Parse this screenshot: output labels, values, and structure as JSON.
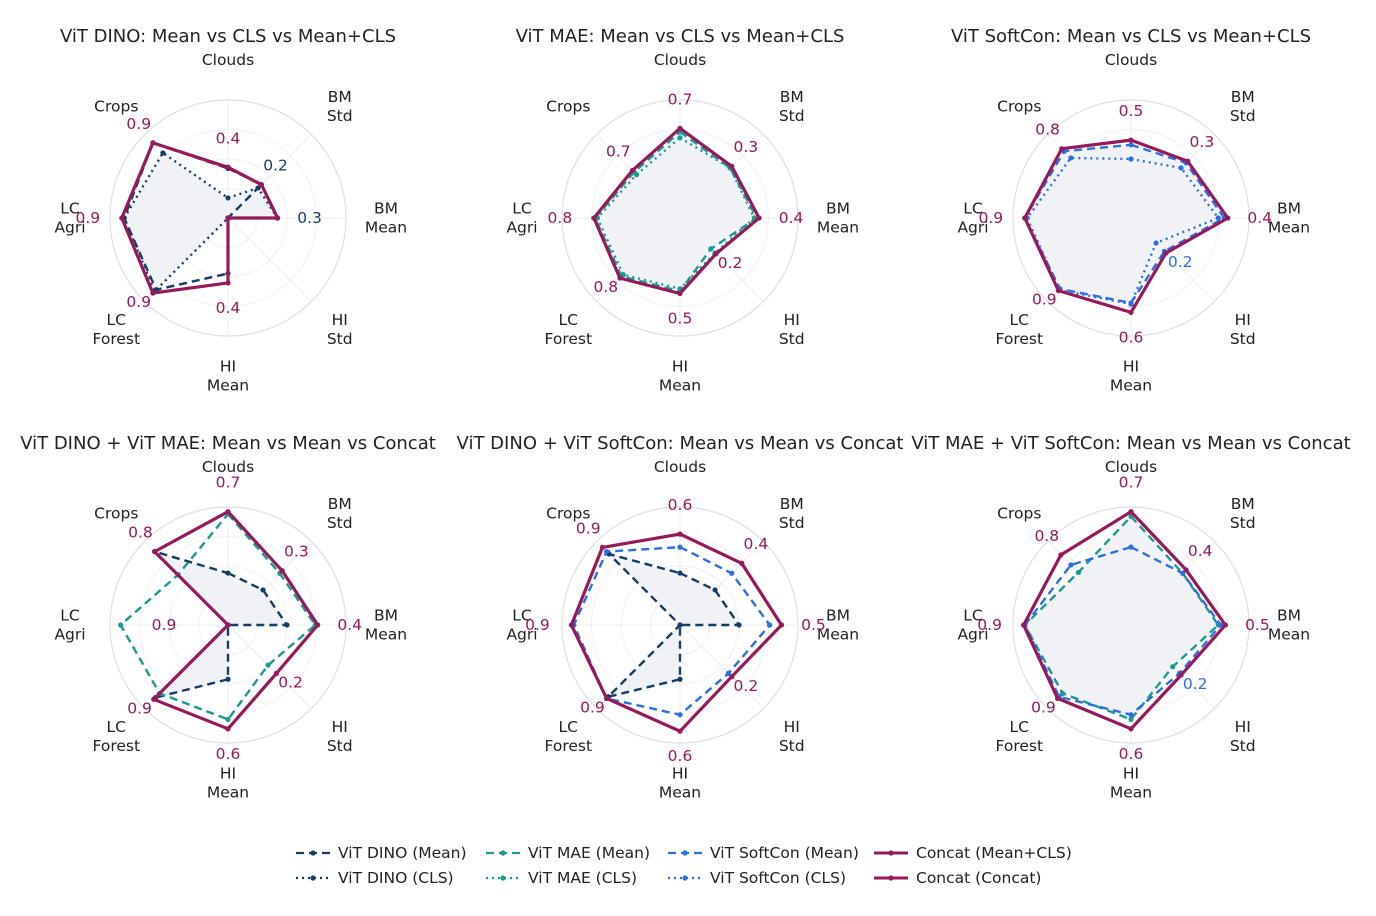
{
  "colors": {
    "dino": "#163d66",
    "mae": "#1a9a91",
    "softcon": "#2d6fe0",
    "concat": "#96195a",
    "grid": "#dedede",
    "fill_primary": "#eef1f5"
  },
  "series_styles": {
    "dino_mean": {
      "label": "ViT DINO (Mean)",
      "color": "#163d66",
      "dash": "dashed"
    },
    "dino_cls": {
      "label": "ViT DINO (CLS)",
      "color": "#163d66",
      "dash": "dotted"
    },
    "mae_mean": {
      "label": "ViT MAE (Mean)",
      "color": "#1a9a91",
      "dash": "dashed"
    },
    "mae_cls": {
      "label": "ViT MAE (CLS)",
      "color": "#1a9a91",
      "dash": "dotted"
    },
    "softcon_mean": {
      "label": "ViT SoftCon (Mean)",
      "color": "#2d6fe0",
      "dash": "dashed"
    },
    "softcon_cls": {
      "label": "ViT SoftCon (CLS)",
      "color": "#2d6fe0",
      "dash": "dotted"
    },
    "concat_meancls": {
      "label": "Concat (Mean+CLS)",
      "color": "#96195a",
      "dash": "solid"
    },
    "concat_concat": {
      "label": "Concat (Concat)",
      "color": "#96195a",
      "dash": "solid"
    }
  },
  "legend": {
    "columns": [
      [
        "dino_mean",
        "dino_cls"
      ],
      [
        "mae_mean",
        "mae_cls"
      ],
      [
        "softcon_mean",
        "softcon_cls"
      ],
      [
        "concat_meancls",
        "concat_concat"
      ]
    ]
  },
  "axes": [
    [
      "Clouds"
    ],
    [
      "BM",
      "Std"
    ],
    [
      "BM",
      "Mean"
    ],
    [
      "HI",
      "Std"
    ],
    [
      "HI",
      "Mean"
    ],
    [
      "LC",
      "Forest"
    ],
    [
      "LC",
      "Agri"
    ],
    [
      "Crops"
    ]
  ],
  "chart_data": [
    {
      "type": "radar",
      "title": "ViT DINO: Mean vs CLS vs Mean+CLS",
      "categories": [
        "Clouds",
        "BM Std",
        "BM Mean",
        "HI Std",
        "HI Mean",
        "LC Forest",
        "LC Agri",
        "Crops"
      ],
      "rmax": 1.0,
      "series": [
        {
          "name": "ViT DINO (CLS)",
          "style": "dino_cls",
          "values": [
            0.17,
            0.36,
            0.42,
            0.0,
            0.0,
            0.88,
            0.88,
            0.78
          ]
        },
        {
          "name": "ViT DINO (Mean)",
          "style": "dino_mean",
          "values": [
            0.42,
            0.4,
            0.0,
            0.0,
            0.47,
            0.86,
            0.88,
            0.9
          ]
        },
        {
          "name": "Concat (Mean+CLS)",
          "style": "concat_meancls",
          "values": [
            0.43,
            0.4,
            0.42,
            0.0,
            0.55,
            0.9,
            0.9,
            0.9
          ]
        }
      ],
      "value_labels": [
        {
          "axis": 0,
          "text": "0.4",
          "color": "#96195a"
        },
        {
          "axis": 1,
          "text": "0.2",
          "color": "#163d66"
        },
        {
          "axis": 2,
          "text": "0.3",
          "color": "#163d66"
        },
        {
          "axis": 4,
          "text": "0.4",
          "color": "#96195a"
        },
        {
          "axis": 5,
          "text": "0.9",
          "color": "#96195a"
        },
        {
          "axis": 6,
          "text": "0.9",
          "color": "#96195a"
        },
        {
          "axis": 7,
          "text": "0.9",
          "color": "#96195a"
        }
      ]
    },
    {
      "type": "radar",
      "title": "ViT MAE: Mean vs CLS vs Mean+CLS",
      "categories": [
        "Clouds",
        "BM Std",
        "BM Mean",
        "HI Std",
        "HI Mean",
        "LC Forest",
        "LC Agri",
        "Crops"
      ],
      "rmax": 1.0,
      "series": [
        {
          "name": "ViT MAE (Mean)",
          "style": "mae_mean",
          "values": [
            0.73,
            0.6,
            0.65,
            0.37,
            0.62,
            0.7,
            0.72,
            0.55
          ]
        },
        {
          "name": "ViT MAE (CLS)",
          "style": "mae_cls",
          "values": [
            0.68,
            0.6,
            0.63,
            0.42,
            0.6,
            0.68,
            0.7,
            0.52
          ]
        },
        {
          "name": "Concat (Mean+CLS)",
          "style": "concat_meancls",
          "values": [
            0.76,
            0.62,
            0.67,
            0.43,
            0.64,
            0.72,
            0.73,
            0.57
          ]
        }
      ],
      "value_labels": [
        {
          "axis": 0,
          "text": "0.7",
          "color": "#96195a"
        },
        {
          "axis": 1,
          "text": "0.3",
          "color": "#96195a"
        },
        {
          "axis": 2,
          "text": "0.4",
          "color": "#96195a"
        },
        {
          "axis": 3,
          "text": "0.2",
          "color": "#96195a"
        },
        {
          "axis": 4,
          "text": "0.5",
          "color": "#96195a"
        },
        {
          "axis": 5,
          "text": "0.8",
          "color": "#96195a"
        },
        {
          "axis": 6,
          "text": "0.8",
          "color": "#96195a"
        },
        {
          "axis": 7,
          "text": "0.7",
          "color": "#96195a"
        }
      ]
    },
    {
      "type": "radar",
      "title": "ViT SoftCon: Mean vs CLS vs Mean+CLS",
      "categories": [
        "Clouds",
        "BM Std",
        "BM Mean",
        "HI Std",
        "HI Mean",
        "LC Forest",
        "LC Agri",
        "Crops"
      ],
      "rmax": 1.0,
      "series": [
        {
          "name": "ViT SoftCon (Mean)",
          "style": "softcon_mean",
          "values": [
            0.62,
            0.66,
            0.79,
            0.4,
            0.72,
            0.85,
            0.9,
            0.8
          ]
        },
        {
          "name": "ViT SoftCon (CLS)",
          "style": "softcon_cls",
          "values": [
            0.5,
            0.6,
            0.74,
            0.3,
            0.73,
            0.86,
            0.88,
            0.72
          ]
        },
        {
          "name": "Concat (Mean+CLS)",
          "style": "concat_meancls",
          "values": [
            0.66,
            0.68,
            0.82,
            0.42,
            0.8,
            0.87,
            0.9,
            0.83
          ]
        }
      ],
      "value_labels": [
        {
          "axis": 0,
          "text": "0.5",
          "color": "#96195a"
        },
        {
          "axis": 1,
          "text": "0.3",
          "color": "#96195a"
        },
        {
          "axis": 2,
          "text": "0.4",
          "color": "#96195a"
        },
        {
          "axis": 3,
          "text": "0.2",
          "color": "#2d6fe0"
        },
        {
          "axis": 4,
          "text": "0.6",
          "color": "#96195a"
        },
        {
          "axis": 5,
          "text": "0.9",
          "color": "#96195a"
        },
        {
          "axis": 6,
          "text": "0.9",
          "color": "#96195a"
        },
        {
          "axis": 7,
          "text": "0.8",
          "color": "#96195a"
        }
      ]
    },
    {
      "type": "radar",
      "title": "ViT DINO + ViT MAE: Mean vs Mean vs Concat",
      "categories": [
        "Clouds",
        "BM Std",
        "BM Mean",
        "HI Std",
        "HI Mean",
        "LC Forest",
        "LC Agri",
        "Crops"
      ],
      "rmax": 1.0,
      "series": [
        {
          "name": "ViT DINO (Mean)",
          "style": "dino_mean",
          "values": [
            0.44,
            0.42,
            0.5,
            0.0,
            0.46,
            0.87,
            0.0,
            0.88
          ]
        },
        {
          "name": "ViT MAE (Mean)",
          "style": "mae_mean",
          "values": [
            0.94,
            0.62,
            0.74,
            0.48,
            0.8,
            0.82,
            0.91,
            0.6
          ]
        },
        {
          "name": "Concat (Concat)",
          "style": "concat_concat",
          "values": [
            0.96,
            0.65,
            0.76,
            0.58,
            0.88,
            0.89,
            0.0,
            0.88
          ]
        }
      ],
      "value_labels": [
        {
          "axis": 0,
          "text": "0.7",
          "color": "#96195a"
        },
        {
          "axis": 1,
          "text": "0.3",
          "color": "#96195a"
        },
        {
          "axis": 2,
          "text": "0.4",
          "color": "#96195a"
        },
        {
          "axis": 3,
          "text": "0.2",
          "color": "#96195a"
        },
        {
          "axis": 4,
          "text": "0.6",
          "color": "#96195a"
        },
        {
          "axis": 5,
          "text": "0.9",
          "color": "#96195a"
        },
        {
          "axis": 6,
          "text": "0.9",
          "color": "#96195a"
        },
        {
          "axis": 7,
          "text": "0.8",
          "color": "#96195a"
        }
      ]
    },
    {
      "type": "radar",
      "title": "ViT DINO + ViT SoftCon: Mean vs Mean vs Concat",
      "categories": [
        "Clouds",
        "BM Std",
        "BM Mean",
        "HI Std",
        "HI Mean",
        "LC Forest",
        "LC Agri",
        "Crops"
      ],
      "rmax": 1.0,
      "series": [
        {
          "name": "ViT DINO (Mean)",
          "style": "dino_mean",
          "values": [
            0.44,
            0.42,
            0.5,
            0.0,
            0.46,
            0.86,
            0.0,
            0.85
          ]
        },
        {
          "name": "ViT SoftCon (Mean)",
          "style": "softcon_mean",
          "values": [
            0.66,
            0.62,
            0.76,
            0.58,
            0.76,
            0.88,
            0.9,
            0.88
          ]
        },
        {
          "name": "Concat (Concat)",
          "style": "concat_concat",
          "values": [
            0.77,
            0.74,
            0.86,
            0.62,
            0.9,
            0.88,
            0.92,
            0.93
          ]
        }
      ],
      "value_labels": [
        {
          "axis": 0,
          "text": "0.6",
          "color": "#96195a"
        },
        {
          "axis": 1,
          "text": "0.4",
          "color": "#96195a"
        },
        {
          "axis": 2,
          "text": "0.5",
          "color": "#96195a"
        },
        {
          "axis": 3,
          "text": "0.2",
          "color": "#96195a"
        },
        {
          "axis": 4,
          "text": "0.6",
          "color": "#96195a"
        },
        {
          "axis": 5,
          "text": "0.9",
          "color": "#96195a"
        },
        {
          "axis": 6,
          "text": "0.9",
          "color": "#96195a"
        },
        {
          "axis": 7,
          "text": "0.9",
          "color": "#96195a"
        }
      ]
    },
    {
      "type": "radar",
      "title": "ViT MAE + ViT SoftCon: Mean vs Mean vs Concat",
      "categories": [
        "Clouds",
        "BM Std",
        "BM Mean",
        "HI Std",
        "HI Mean",
        "LC Forest",
        "LC Agri",
        "Crops"
      ],
      "rmax": 1.0,
      "series": [
        {
          "name": "ViT MAE (Mean)",
          "style": "mae_mean",
          "values": [
            0.92,
            0.62,
            0.74,
            0.5,
            0.8,
            0.82,
            0.9,
            0.63
          ]
        },
        {
          "name": "ViT SoftCon (Mean)",
          "style": "softcon_mean",
          "values": [
            0.66,
            0.62,
            0.76,
            0.58,
            0.76,
            0.86,
            0.9,
            0.72
          ]
        },
        {
          "name": "Concat (Concat)",
          "style": "concat_concat",
          "values": [
            0.96,
            0.66,
            0.8,
            0.6,
            0.88,
            0.88,
            0.91,
            0.84
          ]
        }
      ],
      "value_labels": [
        {
          "axis": 0,
          "text": "0.7",
          "color": "#96195a"
        },
        {
          "axis": 1,
          "text": "0.4",
          "color": "#96195a"
        },
        {
          "axis": 2,
          "text": "0.5",
          "color": "#96195a"
        },
        {
          "axis": 3,
          "text": "0.2",
          "color": "#2d6fe0"
        },
        {
          "axis": 4,
          "text": "0.6",
          "color": "#96195a"
        },
        {
          "axis": 5,
          "text": "0.9",
          "color": "#96195a"
        },
        {
          "axis": 6,
          "text": "0.9",
          "color": "#96195a"
        },
        {
          "axis": 7,
          "text": "0.8",
          "color": "#96195a"
        }
      ]
    }
  ]
}
